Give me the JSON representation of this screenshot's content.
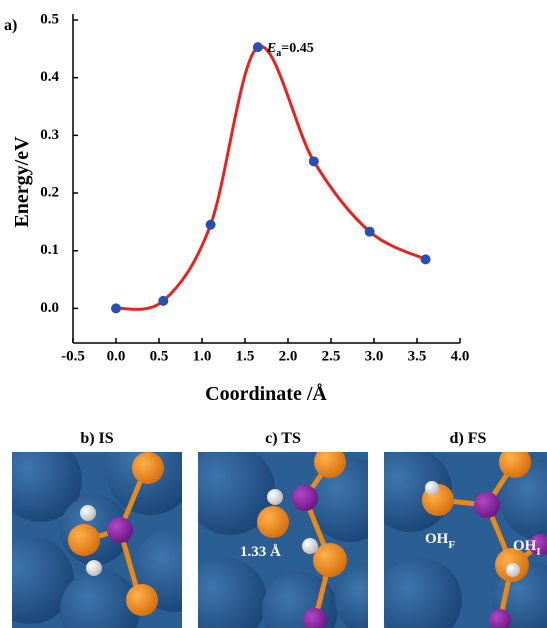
{
  "panel_label": "a)",
  "chart_data": {
    "type": "line",
    "x": [
      0.0,
      0.55,
      1.1,
      1.65,
      2.3,
      2.95,
      3.6
    ],
    "values": [
      0.0,
      0.013,
      0.145,
      0.453,
      0.255,
      0.133,
      0.085
    ],
    "color": "#e8231f",
    "marker_color": "#2b4fb0",
    "smooth": true,
    "xlabel": "Coordinate /Å",
    "ylabel": "Energy/eV",
    "xlim": [
      -0.5,
      4.0
    ],
    "xticks": [
      -0.5,
      {
        "value": 0,
        "label": "0.0"
      },
      0.5,
      {
        "value": 1,
        "label": "1.0"
      },
      1.5,
      {
        "value": 2,
        "label": "2.0"
      },
      2.5,
      {
        "value": 3,
        "label": "3.0"
      },
      3.5,
      {
        "value": 4,
        "label": "4.0"
      }
    ],
    "ylim": [
      -0.06,
      0.5
    ],
    "yticks": [
      {
        "value": 0,
        "label": "0.0"
      },
      0.1,
      0.2,
      0.3,
      0.4,
      0.5
    ],
    "annotation": {
      "symbol": "E",
      "subscript": "a",
      "text": "=0.45"
    }
  },
  "panels": [
    {
      "title": "b) IS"
    },
    {
      "title": "c) TS",
      "label": "1.33 Å"
    },
    {
      "title": "d) FS",
      "labels": [
        {
          "text": "OH",
          "subscript": "F"
        },
        {
          "text": "OH",
          "subscript": "I"
        }
      ]
    }
  ]
}
